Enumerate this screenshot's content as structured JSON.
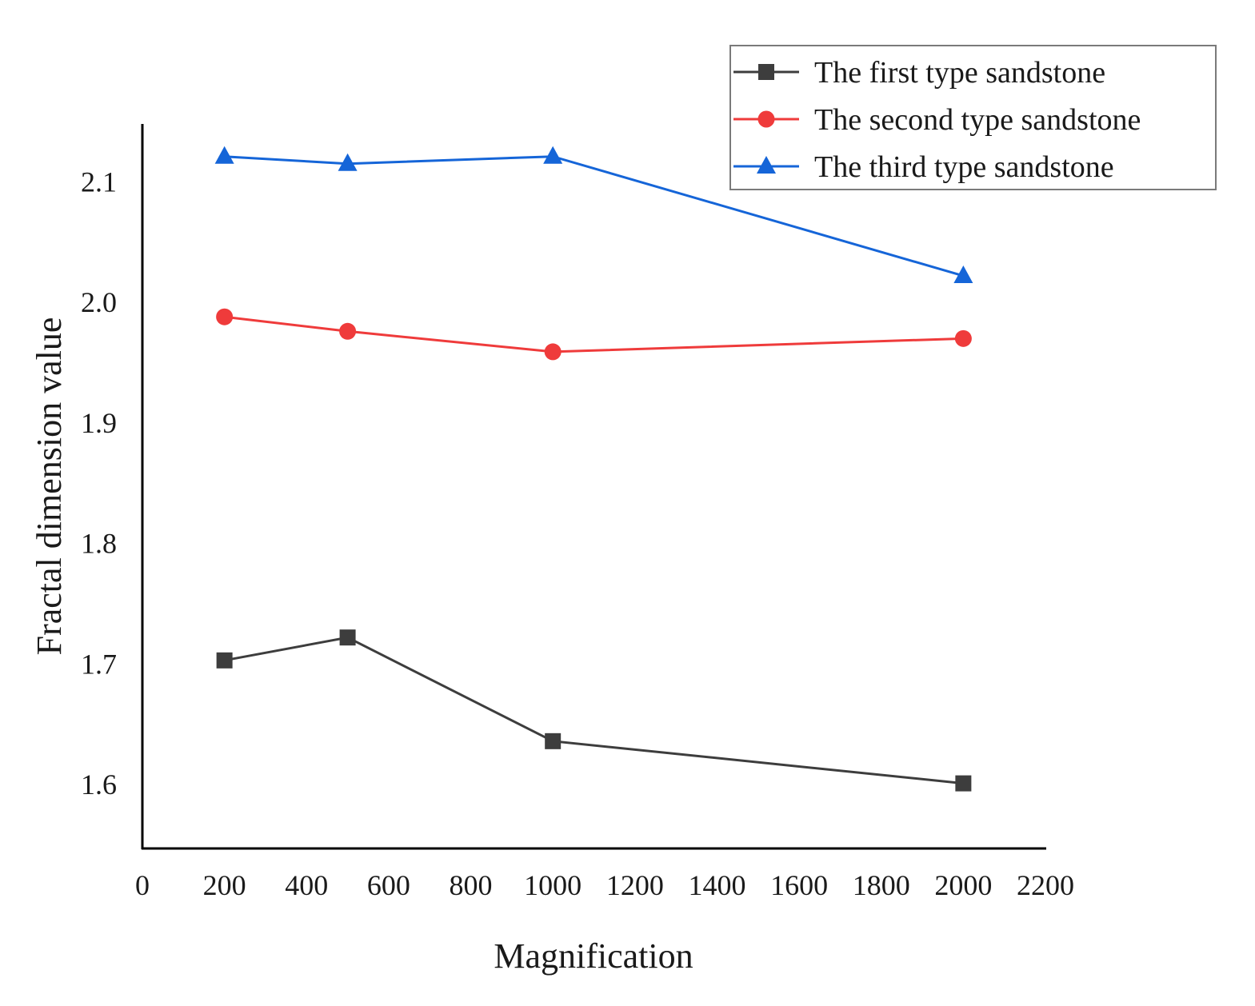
{
  "chart_data": {
    "type": "line",
    "title": "",
    "xlabel": "Magnification",
    "ylabel": "Fractal dimension value",
    "xlim": [
      0,
      2200
    ],
    "ylim": [
      1.547,
      2.148
    ],
    "x_ticks": [
      0,
      200,
      400,
      600,
      800,
      1000,
      1200,
      1400,
      1600,
      1800,
      2000,
      2200
    ],
    "x_tick_labels": [
      "0",
      "200",
      "400",
      "600",
      "800",
      "1000",
      "1200",
      "1400",
      "1600",
      "1800",
      "2000",
      "2200"
    ],
    "y_ticks": [
      1.6,
      1.7,
      1.8,
      1.9,
      2.0,
      2.1
    ],
    "y_tick_labels": [
      "1.6",
      "1.7",
      "1.8",
      "1.9",
      "2.0",
      "2.1"
    ],
    "grid": false,
    "legend_position": "top-right",
    "x": [
      200,
      500,
      1000,
      2000
    ],
    "series": [
      {
        "name": "The first type sandstone",
        "color": "#3d3d3d",
        "marker": "square",
        "values": [
          1.703,
          1.722,
          1.636,
          1.601
        ]
      },
      {
        "name": "The second type sandstone",
        "color": "#ef3b3b",
        "marker": "circle",
        "values": [
          1.988,
          1.976,
          1.959,
          1.97
        ]
      },
      {
        "name": "The third type sandstone",
        "color": "#1565d8",
        "marker": "triangle",
        "values": [
          2.121,
          2.115,
          2.121,
          2.022
        ]
      }
    ]
  }
}
